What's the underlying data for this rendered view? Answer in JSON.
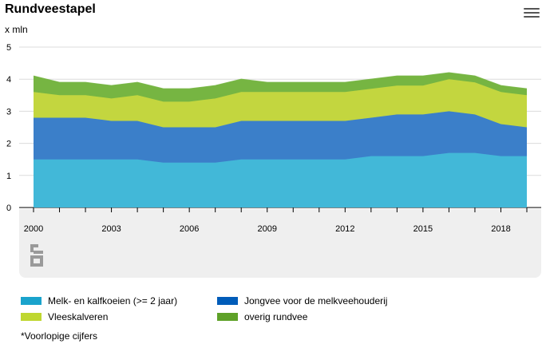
{
  "header": {
    "title": "Rundveestapel",
    "unit": "x mln"
  },
  "footnote": "*Voorlopige cijfers",
  "chart_data": {
    "type": "area",
    "stacked": true,
    "title": "Rundveestapel",
    "ylabel": "x mln",
    "ylim": [
      0,
      5
    ],
    "yticks": [
      "0",
      "1",
      "2",
      "3",
      "4",
      "5"
    ],
    "xticks": [
      "2000",
      "2003",
      "2006",
      "2009",
      "2012",
      "2015",
      "2018"
    ],
    "x": [
      2000,
      2001,
      2002,
      2003,
      2004,
      2005,
      2006,
      2007,
      2008,
      2009,
      2010,
      2011,
      2012,
      2013,
      2014,
      2015,
      2016,
      2017,
      2018,
      2019
    ],
    "grid": true,
    "legend_position": "bottom",
    "series": [
      {
        "name": "Melk- en kalfkoeien (>= 2 jaar)",
        "color": "#42b8d8",
        "values": [
          1.5,
          1.5,
          1.5,
          1.5,
          1.5,
          1.4,
          1.4,
          1.4,
          1.5,
          1.5,
          1.5,
          1.5,
          1.5,
          1.6,
          1.6,
          1.6,
          1.7,
          1.7,
          1.6,
          1.6
        ]
      },
      {
        "name": "Jongvee voor de melkveehouderij",
        "color": "#3b7fc9",
        "values": [
          1.3,
          1.3,
          1.3,
          1.2,
          1.2,
          1.1,
          1.1,
          1.1,
          1.2,
          1.2,
          1.2,
          1.2,
          1.2,
          1.2,
          1.3,
          1.3,
          1.3,
          1.2,
          1.0,
          0.9
        ]
      },
      {
        "name": "Vleeskalveren",
        "color": "#c3d63f",
        "values": [
          0.8,
          0.7,
          0.7,
          0.7,
          0.8,
          0.8,
          0.8,
          0.9,
          0.9,
          0.9,
          0.9,
          0.9,
          0.9,
          0.9,
          0.9,
          0.9,
          1.0,
          1.0,
          1.0,
          1.0
        ]
      },
      {
        "name": "overig rundvee",
        "color": "#76b542",
        "values": [
          0.5,
          0.4,
          0.4,
          0.4,
          0.4,
          0.4,
          0.4,
          0.4,
          0.4,
          0.3,
          0.3,
          0.3,
          0.3,
          0.3,
          0.3,
          0.3,
          0.2,
          0.2,
          0.2,
          0.2
        ]
      }
    ]
  },
  "legend": {
    "items": [
      {
        "label": "Melk- en kalfkoeien (>= 2 jaar)",
        "color": "#1aa3cc"
      },
      {
        "label": "Jongvee voor de melkveehouderij",
        "color": "#005cb9"
      },
      {
        "label": "Vleeskalveren",
        "color": "#bfd730"
      },
      {
        "label": "overig rundvee",
        "color": "#5ea128"
      }
    ]
  }
}
